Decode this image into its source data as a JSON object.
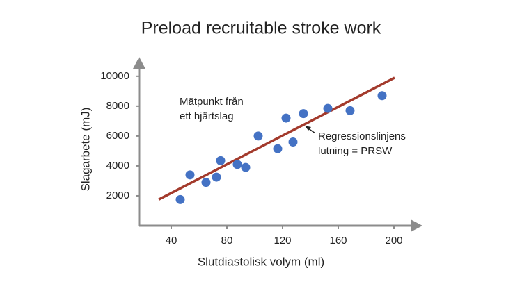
{
  "chart_data": {
    "type": "scatter",
    "title": "Preload recruitable stroke work",
    "x_label": "Slutdiastolisk volym (ml)",
    "y_label": "Slagarbete (mJ)",
    "x": [
      46.5,
      53.5,
      65,
      72.5,
      75.5,
      87.5,
      93.5,
      102.5,
      116.5,
      122.5,
      127.5,
      135,
      152.5,
      168.5,
      191.5
    ],
    "values": [
      1750,
      3400,
      2900,
      3250,
      4350,
      4100,
      3900,
      6000,
      5150,
      7200,
      5600,
      7500,
      7850,
      7700,
      8700
    ],
    "color": "#4472c4",
    "regression": {
      "x": [
        31,
        200.5
      ],
      "values": [
        1750,
        9900
      ],
      "color": "#a33a2c"
    },
    "xlim": [
      17,
      220
    ],
    "ylim": [
      0,
      11200
    ],
    "xticks": [
      40,
      80,
      120,
      160,
      200
    ],
    "yticks": [
      2000,
      4000,
      6000,
      8000,
      10000
    ],
    "annotations": [
      {
        "lines": [
          "Mätpunkt från",
          "ett hjärtslag"
        ]
      },
      {
        "lines": [
          "Regressionslinjens",
          "lutning = PRSW"
        ]
      }
    ]
  }
}
